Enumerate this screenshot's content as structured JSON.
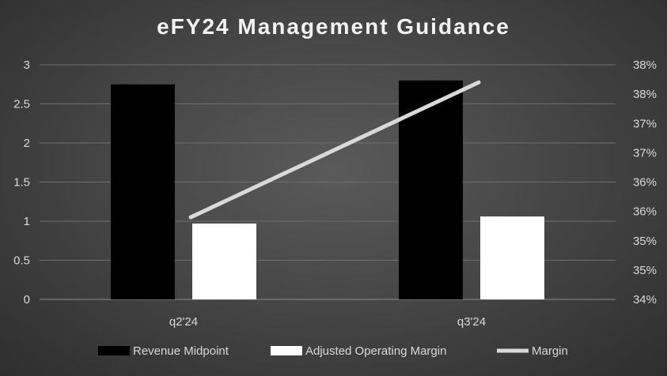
{
  "chart_data": {
    "type": "bar",
    "title": "eFY24 Management Guidance",
    "categories": [
      "q2'24",
      "q3'24"
    ],
    "series": [
      {
        "name": "Revenue Midpoint",
        "type": "bar",
        "axis": "left",
        "color": "#000000",
        "values": [
          2.75,
          2.8
        ]
      },
      {
        "name": "Adjusted Operating Margin",
        "type": "bar",
        "axis": "left",
        "color": "#ffffff",
        "values": [
          0.97,
          1.06
        ]
      },
      {
        "name": "Margin",
        "type": "line",
        "axis": "right",
        "color": "#d9d9d9",
        "values": [
          0.354,
          0.377
        ]
      }
    ],
    "y_left": {
      "min": 0,
      "max": 3,
      "step": 0.5,
      "tick_labels": [
        "0",
        "0.5",
        "1",
        "1.5",
        "2",
        "2.5",
        "3"
      ]
    },
    "y_right": {
      "min": 0.34,
      "max": 0.38,
      "tick_labels": [
        "34%",
        "35%",
        "35%",
        "36%",
        "36%",
        "37%",
        "37%",
        "38%",
        "38%"
      ]
    },
    "grid": true,
    "legend": {
      "position": "bottom",
      "entries": [
        "Revenue Midpoint",
        "Adjusted Operating Margin",
        "Margin"
      ]
    }
  }
}
